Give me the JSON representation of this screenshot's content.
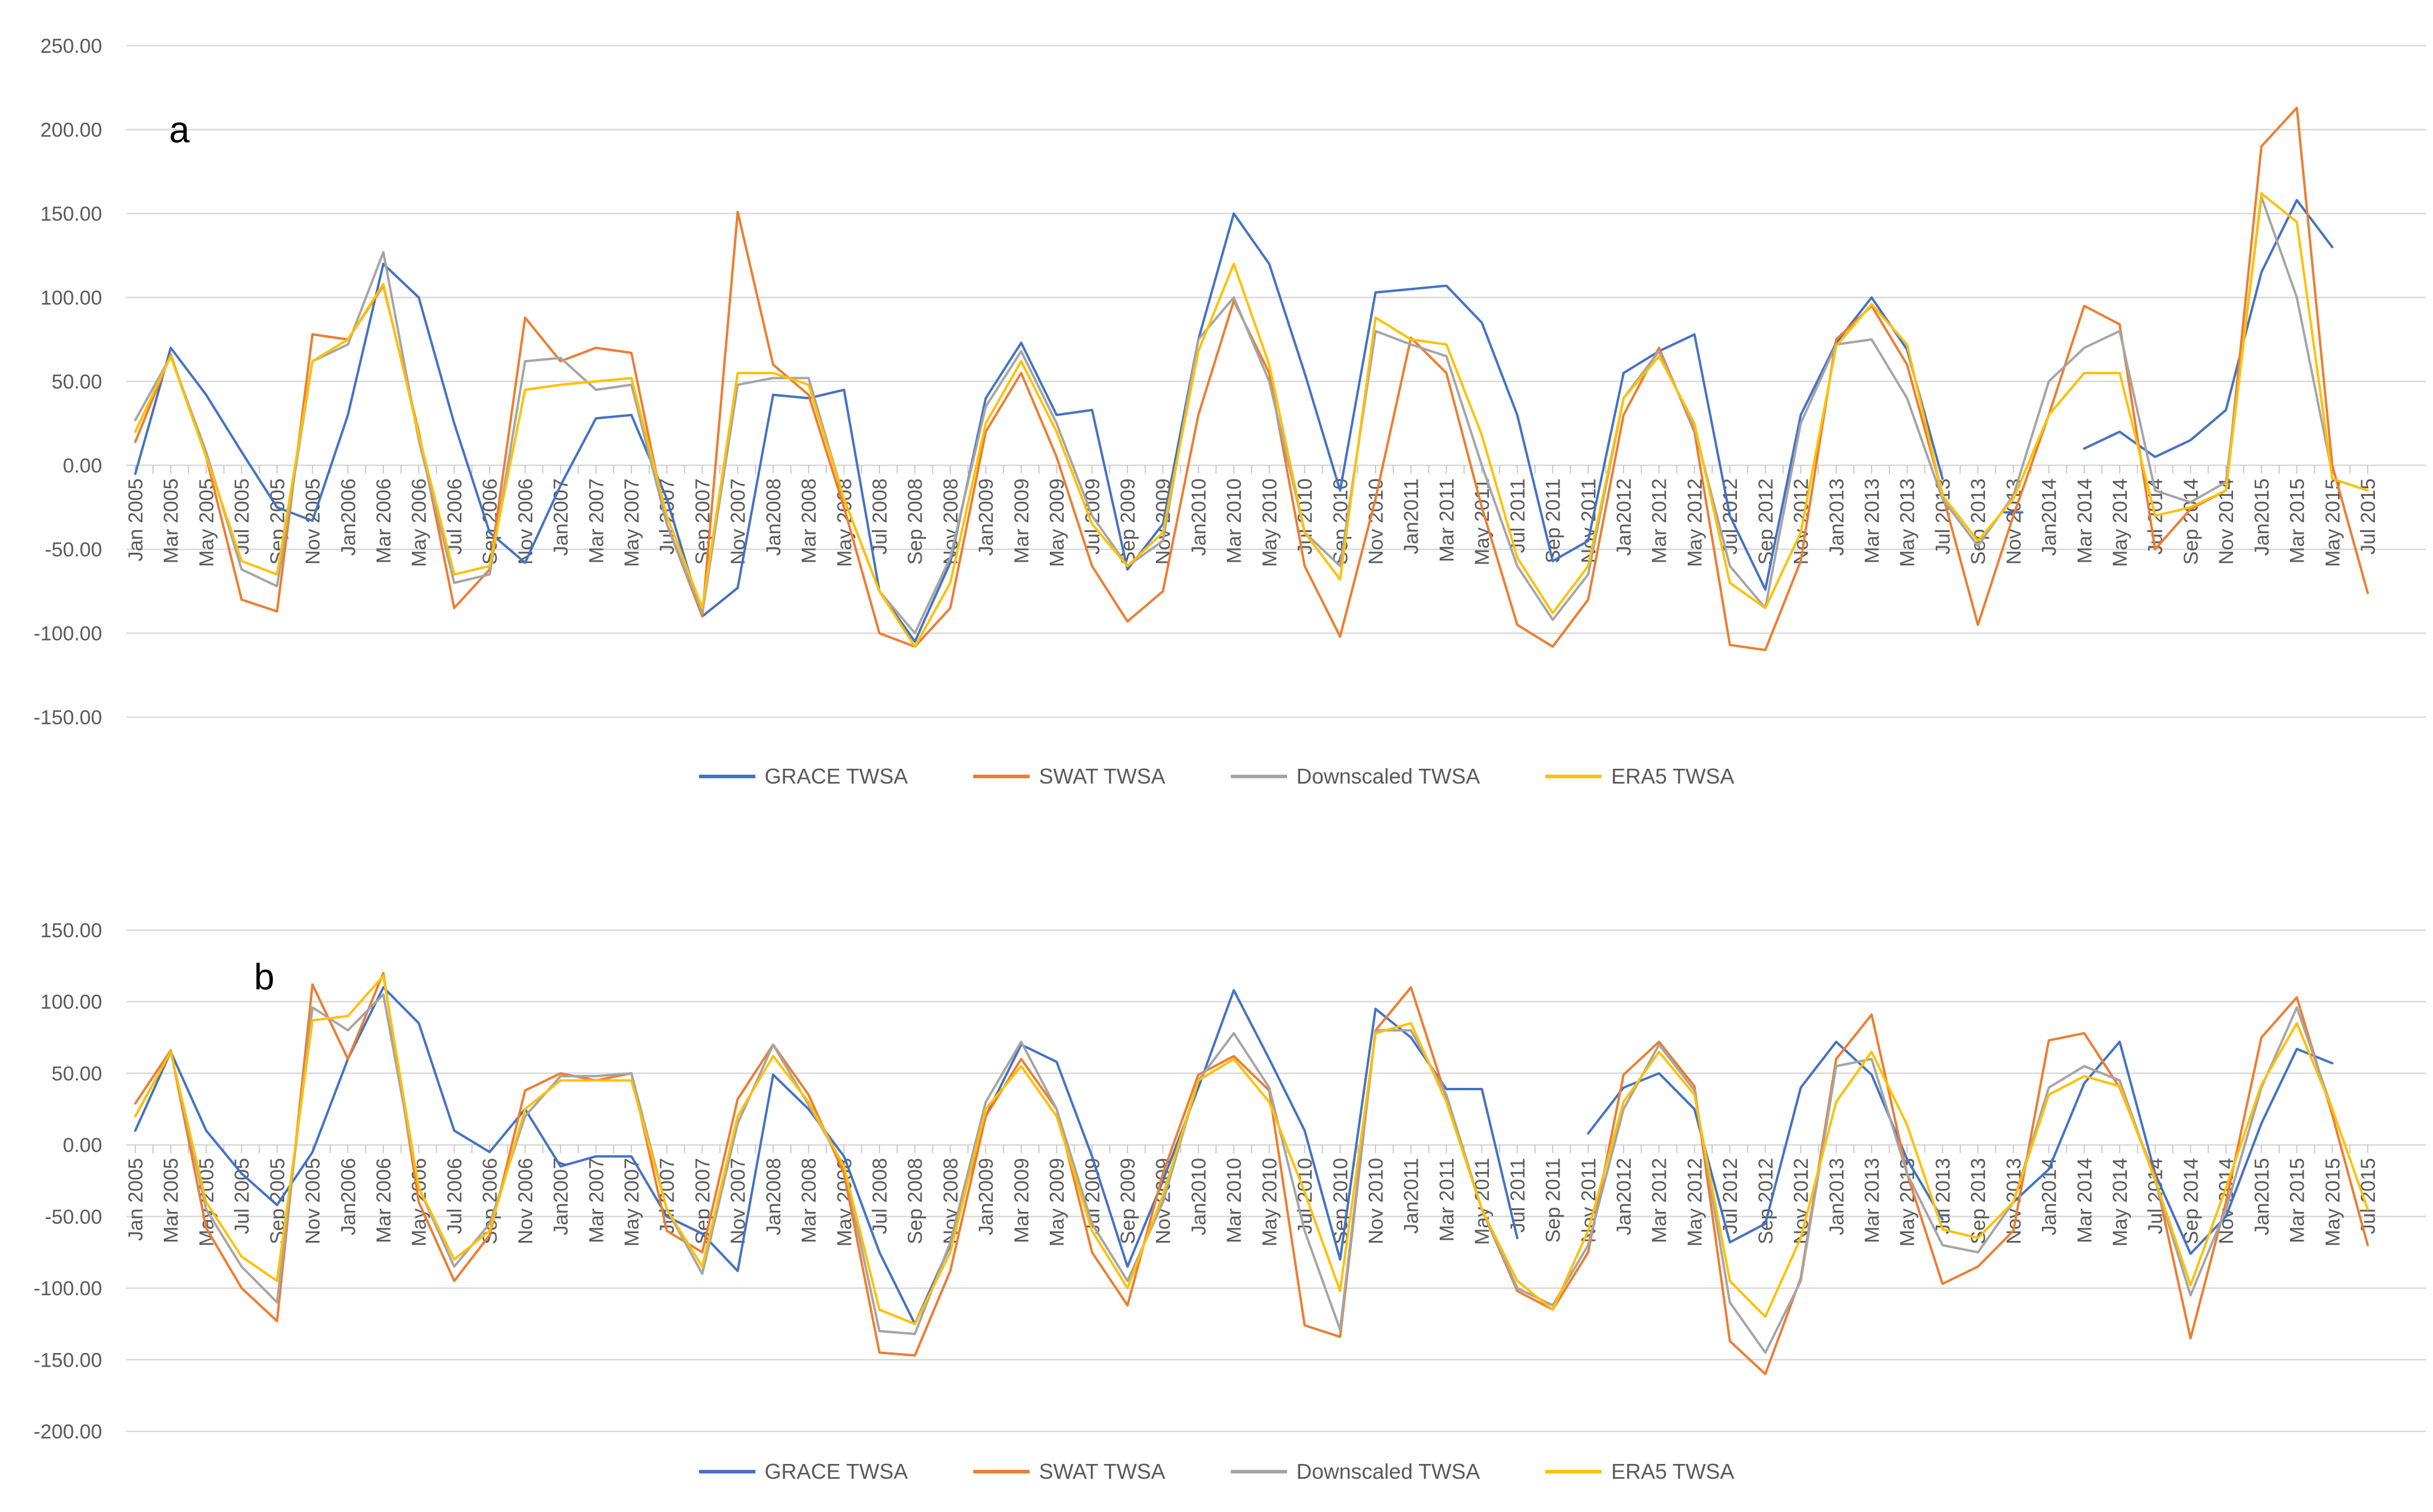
{
  "figure": {
    "description": "Two stacked monthly time-series line charts (panels a and b) comparing TWSA estimates, Jan 2005 - Jul 2015",
    "background": "#FFFFFF"
  },
  "colors": {
    "grace": "#4472C4",
    "swat": "#ED7D31",
    "downscaled": "#A5A5A5",
    "era5": "#FFC000",
    "gridline": "#D9D9D9",
    "tick": "#BFBFBF",
    "axis_text": "#595959",
    "panel_letter": "#000000"
  },
  "chart_data": [
    {
      "panel_label": "a",
      "type": "line",
      "title": "",
      "xlabel": "",
      "ylabel": "",
      "ylim": [
        -150,
        250
      ],
      "y_ticks": [
        250,
        200,
        150,
        100,
        50,
        0,
        -50,
        -100,
        -150
      ],
      "y_tick_labels": [
        "250.00",
        "200.00",
        "150.00",
        "100.00",
        "50.00",
        "0.00",
        "-50.00",
        "-100.00",
        "-150.00"
      ],
      "grid": "horizontal",
      "legend_position": "bottom",
      "x_tick_labels": [
        "Jan 2005",
        "Mar 2005",
        "May 2005",
        "Jul 2005",
        "Sep 2005",
        "Nov 2005",
        "Jan2006",
        "Mar 2006",
        "May 2006",
        "Jul 2006",
        "Sep 2006",
        "Nov 2006",
        "Jan2007",
        "Mar 2007",
        "May 2007",
        "Jul 2007",
        "Sep 2007",
        "Nov 2007",
        "Jan2008",
        "Mar 2008",
        "May 2008",
        "Jul 2008",
        "Sep 2008",
        "Nov 2008",
        "Jan2009",
        "Mar 2009",
        "May 2009",
        "Jul 2009",
        "Sep 2009",
        "Nov 2009",
        "Jan2010",
        "Mar 2010",
        "May 2010",
        "Jul 2010",
        "Sep 2010",
        "Nov 2010",
        "Jan2011",
        "Mar 2011",
        "May 2011",
        "Jul 2011",
        "Sep 2011",
        "Nov 2011",
        "Jan2012",
        "Mar 2012",
        "May 2012",
        "Jul 2012",
        "Sep 2012",
        "Nov 2012",
        "Jan2013",
        "Mar 2013",
        "May 2013",
        "Jul 2013",
        "Sep 2013",
        "Nov 2013",
        "Jan2014",
        "Mar 2014",
        "May 2014",
        "Jul 2014",
        "Sep 2014",
        "Nov 2014",
        "Jan2015",
        "Mar 2015",
        "May 2015",
        "Jul 2015"
      ],
      "legend": [
        "GRACE TWSA",
        "SWAT TWSA",
        "Downscaled TWSA",
        "ERA5 TWSA"
      ],
      "series": [
        {
          "name": "GRACE TWSA",
          "color_key": "grace",
          "values": [
            -5,
            70,
            42,
            8,
            -25,
            -33,
            30,
            120,
            100,
            25,
            -40,
            -58,
            -12,
            28,
            30,
            -20,
            -90,
            -73,
            42,
            40,
            45,
            -75,
            -105,
            -58,
            40,
            73,
            30,
            33,
            -62,
            -35,
            75,
            150,
            120,
            55,
            -15,
            103,
            105,
            107,
            85,
            30,
            -57,
            -45,
            55,
            68,
            78,
            -30,
            -74,
            30,
            73,
            100,
            69,
            -8,
            null,
            -28,
            null,
            10,
            20,
            5,
            15,
            33,
            115,
            158,
            130,
            null
          ]
        },
        {
          "name": "SWAT TWSA",
          "color_key": "swat",
          "values": [
            14,
            66,
            5,
            -80,
            -87,
            78,
            75,
            107,
            20,
            -85,
            -62,
            88,
            62,
            70,
            67,
            -35,
            -90,
            151,
            60,
            42,
            -25,
            -100,
            -108,
            -85,
            20,
            55,
            5,
            -60,
            -93,
            -75,
            30,
            98,
            55,
            -60,
            -102,
            -20,
            76,
            55,
            -25,
            -95,
            -108,
            -80,
            30,
            70,
            20,
            -107,
            -110,
            -57,
            75,
            95,
            60,
            -17,
            -95,
            -30,
            30,
            95,
            84,
            -50,
            -26,
            -15,
            190,
            213,
            0,
            -76
          ]
        },
        {
          "name": "Downscaled TWSA",
          "color_key": "downscaled",
          "values": [
            27,
            65,
            8,
            -62,
            -72,
            62,
            72,
            127,
            15,
            -70,
            -65,
            62,
            64,
            45,
            48,
            -35,
            -88,
            48,
            52,
            52,
            -20,
            -75,
            -100,
            -55,
            35,
            68,
            25,
            -30,
            -60,
            -45,
            75,
            100,
            50,
            -40,
            -60,
            80,
            72,
            65,
            0,
            -60,
            -92,
            -65,
            40,
            68,
            22,
            -60,
            -85,
            25,
            72,
            75,
            40,
            -20,
            -48,
            -18,
            50,
            70,
            80,
            -15,
            -22,
            -10,
            160,
            100,
            -5,
            null
          ]
        },
        {
          "name": "ERA5 TWSA",
          "color_key": "era5",
          "values": [
            20,
            65,
            5,
            -57,
            -65,
            62,
            75,
            108,
            18,
            -65,
            -60,
            45,
            48,
            50,
            52,
            -30,
            -85,
            55,
            55,
            48,
            -20,
            -75,
            -108,
            -70,
            25,
            62,
            20,
            -35,
            -60,
            -40,
            68,
            120,
            60,
            -40,
            -68,
            88,
            75,
            72,
            18,
            -55,
            -88,
            -60,
            40,
            65,
            25,
            -70,
            -85,
            -40,
            71,
            96,
            72,
            -18,
            -45,
            -20,
            30,
            55,
            55,
            -30,
            -25,
            -15,
            162,
            145,
            -8,
            -15
          ]
        }
      ]
    },
    {
      "panel_label": "b",
      "type": "line",
      "title": "",
      "xlabel": "",
      "ylabel": "",
      "ylim": [
        -200,
        150
      ],
      "y_ticks": [
        150,
        100,
        50,
        0,
        -50,
        -100,
        -150,
        -200
      ],
      "y_tick_labels": [
        "150.00",
        "100.00",
        "50.00",
        "0.00",
        "-50.00",
        "-100.00",
        "-150.00",
        "-200.00"
      ],
      "grid": "horizontal",
      "legend_position": "bottom",
      "x_tick_labels": [
        "Jan 2005",
        "Mar 2005",
        "May 2005",
        "Jul 2005",
        "Sep 2005",
        "Nov 2005",
        "Jan2006",
        "Mar 2006",
        "May 2006",
        "Jul 2006",
        "Sep 2006",
        "Nov 2006",
        "Jan2007",
        "Mar 2007",
        "May 2007",
        "Jul 2007",
        "Sep 2007",
        "Nov 2007",
        "Jan2008",
        "Mar 2008",
        "May 2008",
        "Jul 2008",
        "Sep 2008",
        "Nov 2008",
        "Jan2009",
        "Mar 2009",
        "May 2009",
        "Jul 2009",
        "Sep 2009",
        "Nov 2009",
        "Jan2010",
        "Mar 2010",
        "May 2010",
        "Jul 2010",
        "Sep 2010",
        "Nov 2010",
        "Jan2011",
        "Mar 2011",
        "May 2011",
        "Jul 2011",
        "Sep 2011",
        "Nov 2011",
        "Jan2012",
        "Mar 2012",
        "May 2012",
        "Jul 2012",
        "Sep 2012",
        "Nov 2012",
        "Jan2013",
        "Mar 2013",
        "May 2013",
        "Jul 2013",
        "Sep 2013",
        "Nov 2013",
        "Jan2014",
        "Mar 2014",
        "May 2014",
        "Jul 2014",
        "Sep 2014",
        "Nov 2014",
        "Jan2015",
        "Mar 2015",
        "May 2015",
        "Jul 2015"
      ],
      "legend": [
        "GRACE TWSA",
        "SWAT TWSA",
        "Downscaled TWSA",
        "ERA5 TWSA"
      ],
      "series": [
        {
          "name": "GRACE TWSA",
          "color_key": "grace",
          "values": [
            10,
            65,
            10,
            -20,
            -42,
            -5,
            60,
            110,
            85,
            10,
            -5,
            25,
            -15,
            -8,
            -8,
            -50,
            -62,
            -88,
            49,
            25,
            -8,
            -75,
            -125,
            -70,
            20,
            70,
            58,
            -8,
            -85,
            -25,
            40,
            108,
            60,
            10,
            -80,
            95,
            75,
            39,
            39,
            -65,
            null,
            8,
            40,
            50,
            25,
            -68,
            -55,
            40,
            72,
            49,
            -10,
            -52,
            null,
            -40,
            -17,
            43,
            72,
            -20,
            -76,
            -50,
            15,
            67,
            57,
            null
          ]
        },
        {
          "name": "SWAT TWSA",
          "color_key": "swat",
          "values": [
            29,
            66,
            -58,
            -100,
            -123,
            112,
            60,
            120,
            -40,
            -95,
            -63,
            38,
            50,
            45,
            50,
            -60,
            -75,
            32,
            70,
            35,
            -20,
            -145,
            -147,
            -88,
            20,
            60,
            25,
            -75,
            -112,
            -20,
            49,
            62,
            38,
            -126,
            -134,
            80,
            110,
            33,
            -45,
            -102,
            -115,
            -75,
            49,
            72,
            41,
            -137,
            -160,
            -93,
            60,
            91,
            -20,
            -97,
            -85,
            -60,
            73,
            78,
            40,
            -22,
            -135,
            -40,
            75,
            103,
            21,
            -70
          ]
        },
        {
          "name": "Downscaled TWSA",
          "color_key": "downscaled",
          "values": [
            20,
            65,
            -45,
            -85,
            -110,
            96,
            80,
            105,
            -30,
            -85,
            -55,
            20,
            48,
            48,
            50,
            -45,
            -90,
            15,
            70,
            28,
            -15,
            -130,
            -132,
            -68,
            30,
            72,
            25,
            -55,
            -95,
            -40,
            45,
            78,
            40,
            -60,
            -129,
            80,
            80,
            35,
            -45,
            -100,
            -112,
            -70,
            25,
            70,
            38,
            -110,
            -145,
            -95,
            55,
            60,
            -20,
            -70,
            -75,
            -40,
            40,
            55,
            45,
            -25,
            -105,
            -45,
            40,
            96,
            25,
            null
          ]
        },
        {
          "name": "ERA5 TWSA",
          "color_key": "era5",
          "values": [
            20,
            65,
            -40,
            -78,
            -95,
            87,
            90,
            118,
            -30,
            -80,
            -60,
            25,
            45,
            45,
            45,
            -45,
            -85,
            20,
            62,
            30,
            -15,
            -115,
            -125,
            -75,
            25,
            55,
            20,
            -60,
            -100,
            -35,
            45,
            60,
            30,
            -33,
            -102,
            78,
            85,
            30,
            -45,
            -95,
            -115,
            -60,
            30,
            65,
            35,
            -95,
            -120,
            -65,
            30,
            65,
            14,
            -59,
            -65,
            -40,
            35,
            48,
            41,
            -24,
            -98,
            -30,
            42,
            85,
            25,
            -45
          ]
        }
      ]
    }
  ]
}
